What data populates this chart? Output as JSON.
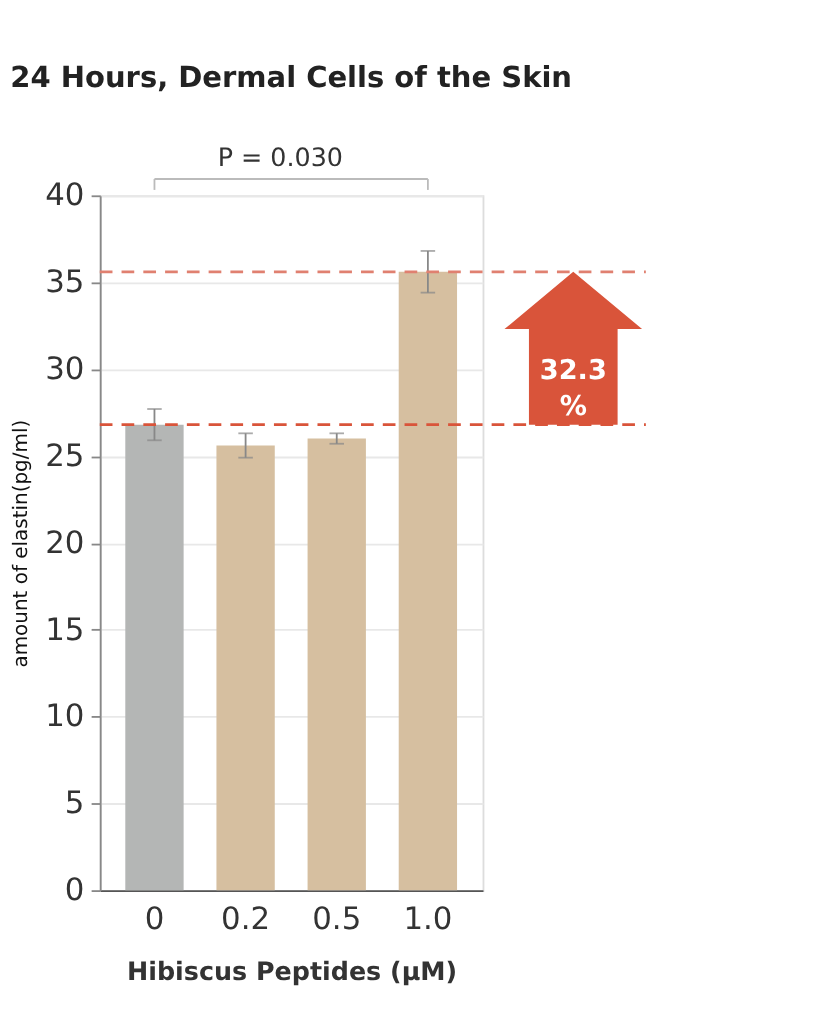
{
  "chart_data": {
    "type": "bar",
    "title": "24 Hours, Dermal Cells of the Skin",
    "xlabel": "Hibiscus Peptides (μM)",
    "ylabel": "amount of elastin(pg/ml)",
    "categories": [
      "0",
      "0.2",
      "0.5",
      "1.0"
    ],
    "values": [
      26.8,
      25.6,
      26.0,
      35.6
    ],
    "errors": [
      0.9,
      0.7,
      0.3,
      1.2
    ],
    "colors": [
      "#b4b6b5",
      "#d6bfa0",
      "#d6bfa0",
      "#d6bfa0"
    ],
    "ylim": [
      0,
      40
    ],
    "yticks": [
      0,
      5,
      10,
      15,
      20,
      25,
      30,
      35,
      40
    ],
    "grid": "y",
    "ref_lines": [
      {
        "axis": "y",
        "value": 26.8,
        "color": "#d9543a",
        "line_style": "dashed"
      },
      {
        "axis": "y",
        "value": 35.6,
        "color": "#e08070",
        "line_style": "dashed"
      }
    ],
    "annotations": [
      "P = 0.030",
      "32.3 %"
    ]
  }
}
